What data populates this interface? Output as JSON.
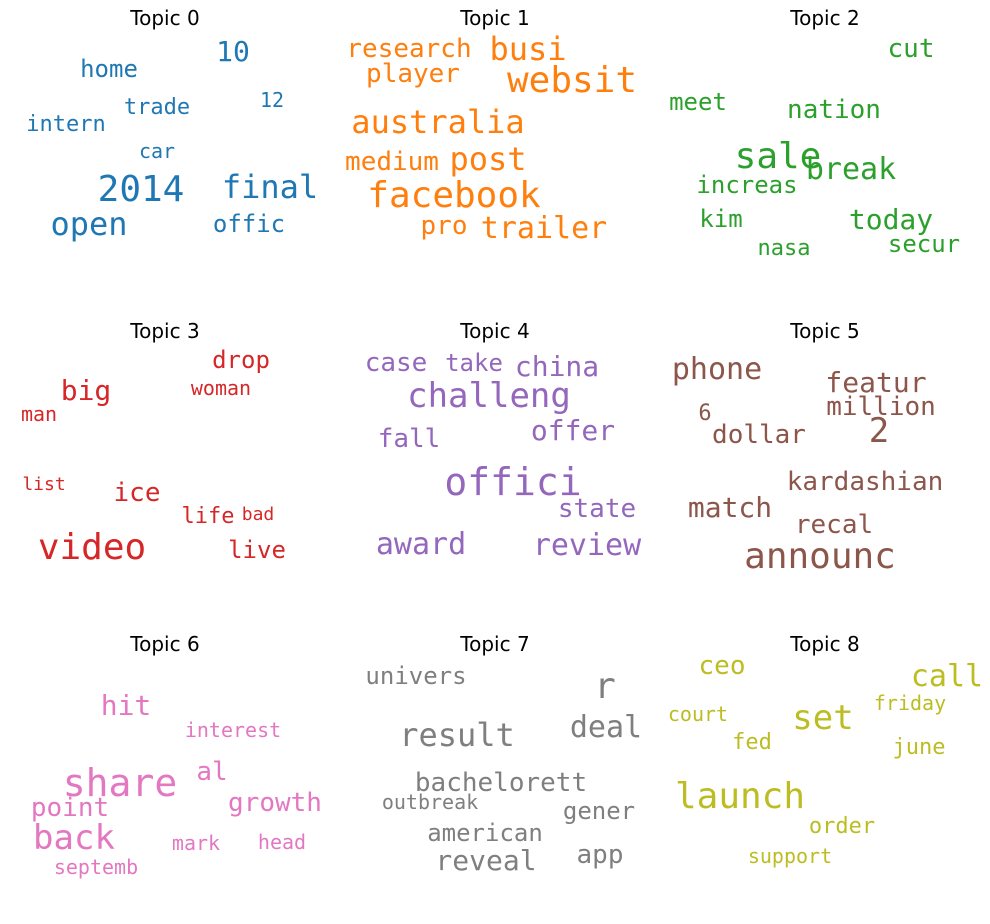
{
  "chart_data": {
    "type": "wordcloud",
    "panels": [
      {
        "title": "Topic 0",
        "color": "#1f77b4",
        "words": [
          {
            "text": "10",
            "weight": 0.7
          },
          {
            "text": "home",
            "weight": 0.6
          },
          {
            "text": "trade",
            "weight": 0.55
          },
          {
            "text": "12",
            "weight": 0.45
          },
          {
            "text": "intern",
            "weight": 0.55
          },
          {
            "text": "car",
            "weight": 0.5
          },
          {
            "text": "2014",
            "weight": 0.9
          },
          {
            "text": "final",
            "weight": 0.8
          },
          {
            "text": "open",
            "weight": 0.85
          },
          {
            "text": "offic",
            "weight": 0.6
          }
        ]
      },
      {
        "title": "Topic 1",
        "color": "#ff7f0e",
        "words": [
          {
            "text": "research",
            "weight": 0.7
          },
          {
            "text": "busi",
            "weight": 0.85
          },
          {
            "text": "player",
            "weight": 0.65
          },
          {
            "text": "websit",
            "weight": 0.95
          },
          {
            "text": "australia",
            "weight": 0.8
          },
          {
            "text": "medium",
            "weight": 0.65
          },
          {
            "text": "post",
            "weight": 0.8
          },
          {
            "text": "facebook",
            "weight": 1.0
          },
          {
            "text": "pro",
            "weight": 0.7
          },
          {
            "text": "trailer",
            "weight": 0.75
          }
        ]
      },
      {
        "title": "Topic 2",
        "color": "#2ca02c",
        "words": [
          {
            "text": "cut",
            "weight": 0.65
          },
          {
            "text": "meet",
            "weight": 0.6
          },
          {
            "text": "nation",
            "weight": 0.65
          },
          {
            "text": "sale",
            "weight": 0.9
          },
          {
            "text": "break",
            "weight": 0.75
          },
          {
            "text": "increas",
            "weight": 0.6
          },
          {
            "text": "kim",
            "weight": 0.55
          },
          {
            "text": "today",
            "weight": 0.7
          },
          {
            "text": "secur",
            "weight": 0.6
          },
          {
            "text": "nasa",
            "weight": 0.55
          }
        ]
      },
      {
        "title": "Topic 3",
        "color": "#d62728",
        "words": [
          {
            "text": "drop",
            "weight": 0.6
          },
          {
            "text": "big",
            "weight": 0.7
          },
          {
            "text": "woman",
            "weight": 0.55
          },
          {
            "text": "man",
            "weight": 0.5
          },
          {
            "text": "list",
            "weight": 0.45
          },
          {
            "text": "ice",
            "weight": 0.65
          },
          {
            "text": "life",
            "weight": 0.55
          },
          {
            "text": "bad",
            "weight": 0.45
          },
          {
            "text": "video",
            "weight": 1.0
          },
          {
            "text": "live",
            "weight": 0.6
          }
        ]
      },
      {
        "title": "Topic 4",
        "color": "#9467bd",
        "words": [
          {
            "text": "case",
            "weight": 0.65
          },
          {
            "text": "take",
            "weight": 0.6
          },
          {
            "text": "china",
            "weight": 0.7
          },
          {
            "text": "challeng",
            "weight": 0.9
          },
          {
            "text": "offer",
            "weight": 0.7
          },
          {
            "text": "fall",
            "weight": 0.6
          },
          {
            "text": "offici",
            "weight": 1.0
          },
          {
            "text": "state",
            "weight": 0.65
          },
          {
            "text": "award",
            "weight": 0.75
          },
          {
            "text": "review",
            "weight": 0.75
          }
        ]
      },
      {
        "title": "Topic 5",
        "color": "#8c564b",
        "words": [
          {
            "text": "phone",
            "weight": 0.75
          },
          {
            "text": "featur",
            "weight": 0.7
          },
          {
            "text": "million",
            "weight": 0.7
          },
          {
            "text": "6",
            "weight": 0.5
          },
          {
            "text": "dollar",
            "weight": 0.65
          },
          {
            "text": "2",
            "weight": 0.8
          },
          {
            "text": "kardashian",
            "weight": 0.7
          },
          {
            "text": "match",
            "weight": 0.75
          },
          {
            "text": "recal",
            "weight": 0.65
          },
          {
            "text": "announc",
            "weight": 1.0
          }
        ]
      },
      {
        "title": "Topic 6",
        "color": "#e377c2",
        "words": [
          {
            "text": "hit",
            "weight": 0.7
          },
          {
            "text": "interest",
            "weight": 0.5
          },
          {
            "text": "al",
            "weight": 0.65
          },
          {
            "text": "share",
            "weight": 0.95
          },
          {
            "text": "growth",
            "weight": 0.7
          },
          {
            "text": "point",
            "weight": 0.7
          },
          {
            "text": "back",
            "weight": 0.85
          },
          {
            "text": "mark",
            "weight": 0.5
          },
          {
            "text": "head",
            "weight": 0.5
          },
          {
            "text": "septemb",
            "weight": 0.55
          }
        ]
      },
      {
        "title": "Topic 7",
        "color": "#7f7f7f",
        "words": [
          {
            "text": "univers",
            "weight": 0.65
          },
          {
            "text": "r",
            "weight": 0.9
          },
          {
            "text": "deal",
            "weight": 0.8
          },
          {
            "text": "result",
            "weight": 0.85
          },
          {
            "text": "bachelorett",
            "weight": 0.7
          },
          {
            "text": "outbreak",
            "weight": 0.6
          },
          {
            "text": "gener",
            "weight": 0.65
          },
          {
            "text": "american",
            "weight": 0.65
          },
          {
            "text": "reveal",
            "weight": 0.8
          },
          {
            "text": "app",
            "weight": 0.75
          }
        ]
      },
      {
        "title": "Topic 8",
        "color": "#bcbd22",
        "words": [
          {
            "text": "ceo",
            "weight": 0.65
          },
          {
            "text": "call",
            "weight": 0.8
          },
          {
            "text": "court",
            "weight": 0.5
          },
          {
            "text": "set",
            "weight": 0.9
          },
          {
            "text": "friday",
            "weight": 0.55
          },
          {
            "text": "fed",
            "weight": 0.6
          },
          {
            "text": "june",
            "weight": 0.65
          },
          {
            "text": "launch",
            "weight": 1.0
          },
          {
            "text": "order",
            "weight": 0.6
          },
          {
            "text": "support",
            "weight": 0.55
          }
        ]
      }
    ]
  }
}
